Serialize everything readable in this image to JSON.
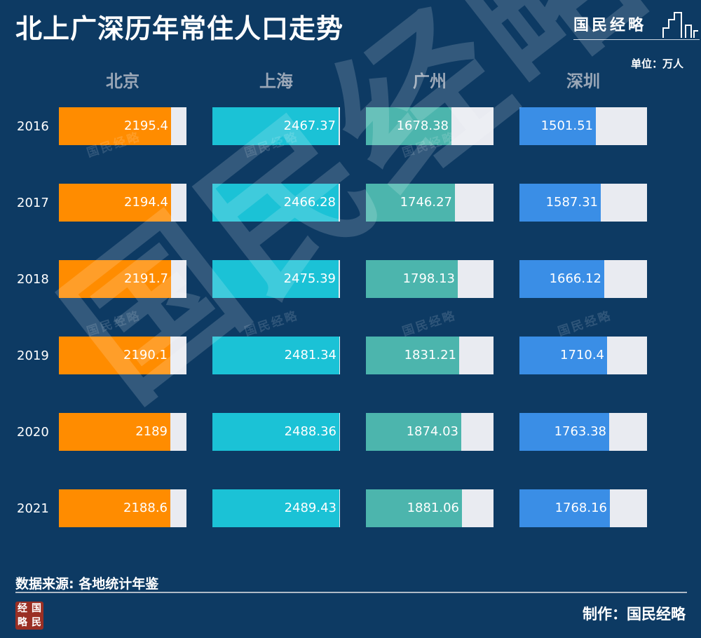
{
  "title": "北上广深历年常住人口走势",
  "brand": "国民经略",
  "unit": "单位：万人",
  "source": "数据来源: 各地统计年鉴",
  "maker": "制作：国民经略",
  "logo_chars": [
    "经",
    "国",
    "略",
    "民"
  ],
  "watermark_text": "国民经略",
  "chart_data": {
    "type": "bar",
    "categories": [
      "2016",
      "2017",
      "2018",
      "2019",
      "2020",
      "2021"
    ],
    "series": [
      {
        "name": "北京",
        "color": "#ff8c00",
        "values": [
          2195.4,
          2194.4,
          2191.7,
          2190.1,
          2189,
          2188.6
        ]
      },
      {
        "name": "上海",
        "color": "#1bc2d6",
        "values": [
          2467.37,
          2466.28,
          2475.39,
          2481.34,
          2488.36,
          2489.43
        ]
      },
      {
        "name": "广州",
        "color": "#4cb5ad",
        "values": [
          1678.38,
          1746.27,
          1798.13,
          1831.21,
          1874.03,
          1881.06
        ]
      },
      {
        "name": "深圳",
        "color": "#3a8ee6",
        "values": [
          1501.51,
          1587.31,
          1666.12,
          1710.4,
          1763.38,
          1768.16
        ]
      }
    ],
    "colors": {
      "background": "#0d3a63",
      "bar_track": "#e9ebf1"
    }
  }
}
